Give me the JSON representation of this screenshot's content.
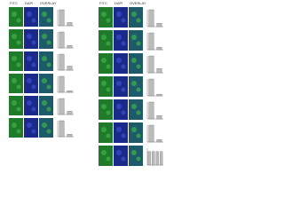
{
  "left": {
    "headers": [
      "FITC",
      "DAPI",
      "OVERLAY"
    ],
    "rows": [
      {
        "bars": [
          100,
          20
        ]
      },
      {
        "bars": [
          100,
          15
        ]
      },
      {
        "bars": [
          100,
          25
        ]
      },
      {
        "bars": [
          100,
          10
        ]
      },
      {
        "bars": [
          100,
          20
        ]
      },
      {
        "bars": [
          100,
          15
        ]
      }
    ]
  },
  "right": {
    "headers": [
      "FITC",
      "DAPI",
      "OVERLAY"
    ],
    "rows": [
      {
        "bars": [
          100,
          20
        ]
      },
      {
        "bars": [
          100,
          15
        ]
      },
      {
        "bars": [
          100,
          25
        ]
      },
      {
        "bars": [
          100,
          10
        ]
      },
      {
        "bars": [
          100,
          20
        ]
      },
      {
        "bars": [
          100,
          15
        ]
      },
      {
        "bars": [
          80,
          80,
          80,
          80
        ]
      }
    ]
  }
}
